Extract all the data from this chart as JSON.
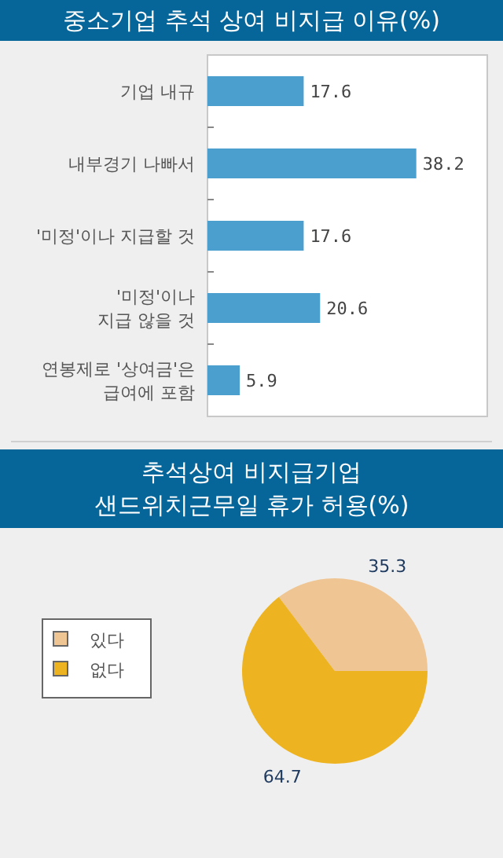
{
  "chart_data": [
    {
      "type": "bar",
      "orientation": "horizontal",
      "title": "중소기업 추석 상여 비지급 이유(%)",
      "categories": [
        "기업 내규",
        "내부경기 나빠서",
        "'미정'이나 지급할 것",
        "'미정'이나\n지급 않을 것",
        "연봉제로 '상여금'은\n급여에 포함"
      ],
      "values": [
        17.6,
        38.2,
        17.6,
        20.6,
        5.9
      ],
      "color": "#4a9fcf",
      "data_labels": true
    },
    {
      "type": "pie",
      "title": "추석상여 비지급기업\n샌드위치근무일 휴가 허용(%)",
      "categories": [
        "있다",
        "없다"
      ],
      "values": [
        35.3,
        64.7
      ],
      "colors": [
        "#eec593",
        "#eeb321"
      ],
      "data_labels": true,
      "legend": "left"
    }
  ]
}
